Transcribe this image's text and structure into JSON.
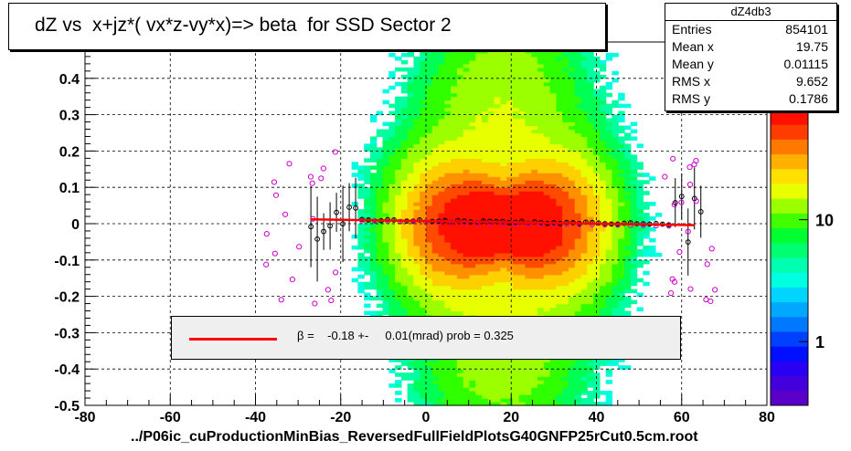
{
  "title": "dZ vs  x+jz*( vx*z-vy*x)=> beta  for SSD Sector 2",
  "stats": {
    "name": "dZ4db3",
    "rows": [
      {
        "label": "Entries",
        "value": "854101"
      },
      {
        "label": "Mean x",
        "value": "19.75"
      },
      {
        "label": "Mean y",
        "value": "0.01115"
      },
      {
        "label": "RMS x",
        "value": "9.652"
      },
      {
        "label": "RMS y",
        "value": "0.1786"
      }
    ]
  },
  "legend": {
    "text": "β =    -0.18 +-     0.01(mrad) prob = 0.325",
    "line_color": "#ff0000"
  },
  "xaxis_title": "../P06ic_cuProductionMinBias_ReversedFullFieldPlotsG40GNFP25rCut0.5cm.root",
  "colors": {
    "fit_line": "#ff0000",
    "profile_markers": "#000000",
    "open_markers": "#cc00cc"
  },
  "chart_data": {
    "type": "heatmap",
    "x_ticks": [
      -80,
      -60,
      -40,
      -20,
      0,
      20,
      40,
      60,
      80
    ],
    "y_ticks": [
      -0.5,
      -0.4,
      -0.3,
      -0.2,
      -0.1,
      0,
      0.1,
      0.2,
      0.3,
      0.4
    ],
    "xlim": [
      -80,
      80
    ],
    "ylim": [
      -0.5,
      0.5
    ],
    "grid": true,
    "log_z": true,
    "z_ticks": [
      1,
      10
    ],
    "z_range": [
      0.3,
      80
    ],
    "fit": {
      "x_range": [
        -27,
        63
      ],
      "y_start": 0.012,
      "y_end": -0.004
    },
    "density_center": {
      "x": 18,
      "y": 0.0
    }
  }
}
